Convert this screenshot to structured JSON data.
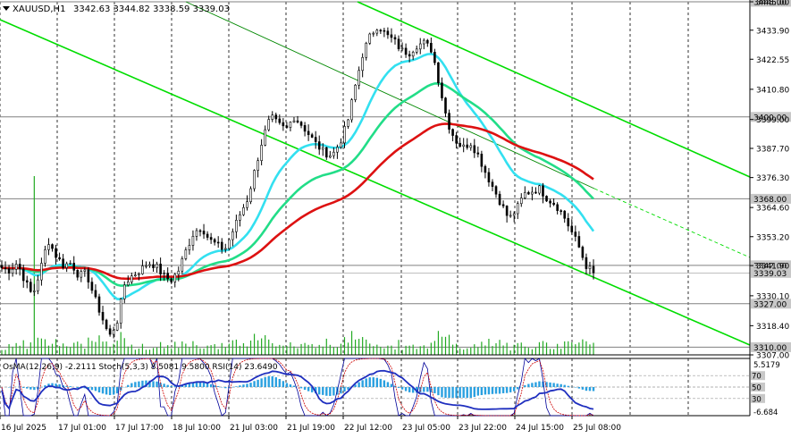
{
  "header": {
    "symbol": "XAUUSD,H1",
    "ohlc": "3342.63 3344.82 3338.59 3339.03"
  },
  "indicator_header": "OsMA(12,26,9) -2.2111  Stoch(5,3,3) 8.5081 9.5800  RSI(14) 23.6490",
  "colors": {
    "background": "#ffffff",
    "grid": "#000000",
    "candle": "#000000",
    "channel": "#00dd00",
    "ma_fast": "#33e0f0",
    "ma_mid": "#22dd88",
    "ma_slow": "#dd1111",
    "level_line": "#808080",
    "volume": "#22aa22",
    "osma": "#2aa0e0",
    "stoch_main": "#000099",
    "stoch_signal": "#cc0000",
    "rsi": "#1f2fbf"
  },
  "chart_data": {
    "type": "candlestick",
    "title": "XAUUSD,H1",
    "ylim": [
      3307.0,
      3445.0
    ],
    "y_ticks": [
      "3445.00",
      "3433.90",
      "3422.55",
      "3410.80",
      "3399.00",
      "3387.70",
      "3376.30",
      "3364.60",
      "3353.20",
      "3341.90",
      "3330.10",
      "3318.40",
      "3307.00"
    ],
    "x_ticks": [
      "16 Jul 2025",
      "17 Jul 01:00",
      "17 Jul 17:00",
      "18 Jul 10:00",
      "21 Jul 03:00",
      "21 Jul 19:00",
      "22 Jul 12:00",
      "23 Jul 05:00",
      "23 Jul 22:00",
      "24 Jul 15:00",
      "25 Jul 08:00"
    ],
    "level_labels": [
      {
        "value": 3445.0,
        "label": "3445.00"
      },
      {
        "value": 3400.0,
        "label": "3400.00"
      },
      {
        "value": 3368.0,
        "label": "3368.00"
      },
      {
        "value": 3342.0,
        "label": "3342.00"
      },
      {
        "value": 3339.03,
        "label": "3339.03"
      },
      {
        "value": 3327.0,
        "label": "3327.00"
      },
      {
        "value": 3310.0,
        "label": "3310.00"
      }
    ],
    "close_anchors": [
      3341,
      3340,
      3343,
      3336,
      3330,
      3340,
      3352,
      3346,
      3342,
      3343,
      3338,
      3339,
      3330,
      3322,
      3314,
      3320,
      3335,
      3338,
      3340,
      3343,
      3342,
      3338,
      3336,
      3340,
      3348,
      3355,
      3357,
      3352,
      3350,
      3348,
      3355,
      3362,
      3368,
      3380,
      3392,
      3400,
      3397,
      3395,
      3400,
      3397,
      3393,
      3389,
      3386,
      3385,
      3390,
      3398,
      3412,
      3425,
      3432,
      3436,
      3432,
      3430,
      3426,
      3425,
      3428,
      3429,
      3426,
      3412,
      3398,
      3391,
      3388,
      3390,
      3385,
      3378,
      3372,
      3366,
      3360,
      3364,
      3370,
      3371,
      3372,
      3368,
      3366,
      3362,
      3356,
      3350,
      3342,
      3339.03
    ],
    "stoch_scale": [
      0,
      100
    ],
    "stoch_ticks": [
      "100",
      "70",
      "50",
      "30",
      "0"
    ],
    "osma_ticks": [
      "5.5179",
      "-6.684"
    ]
  }
}
